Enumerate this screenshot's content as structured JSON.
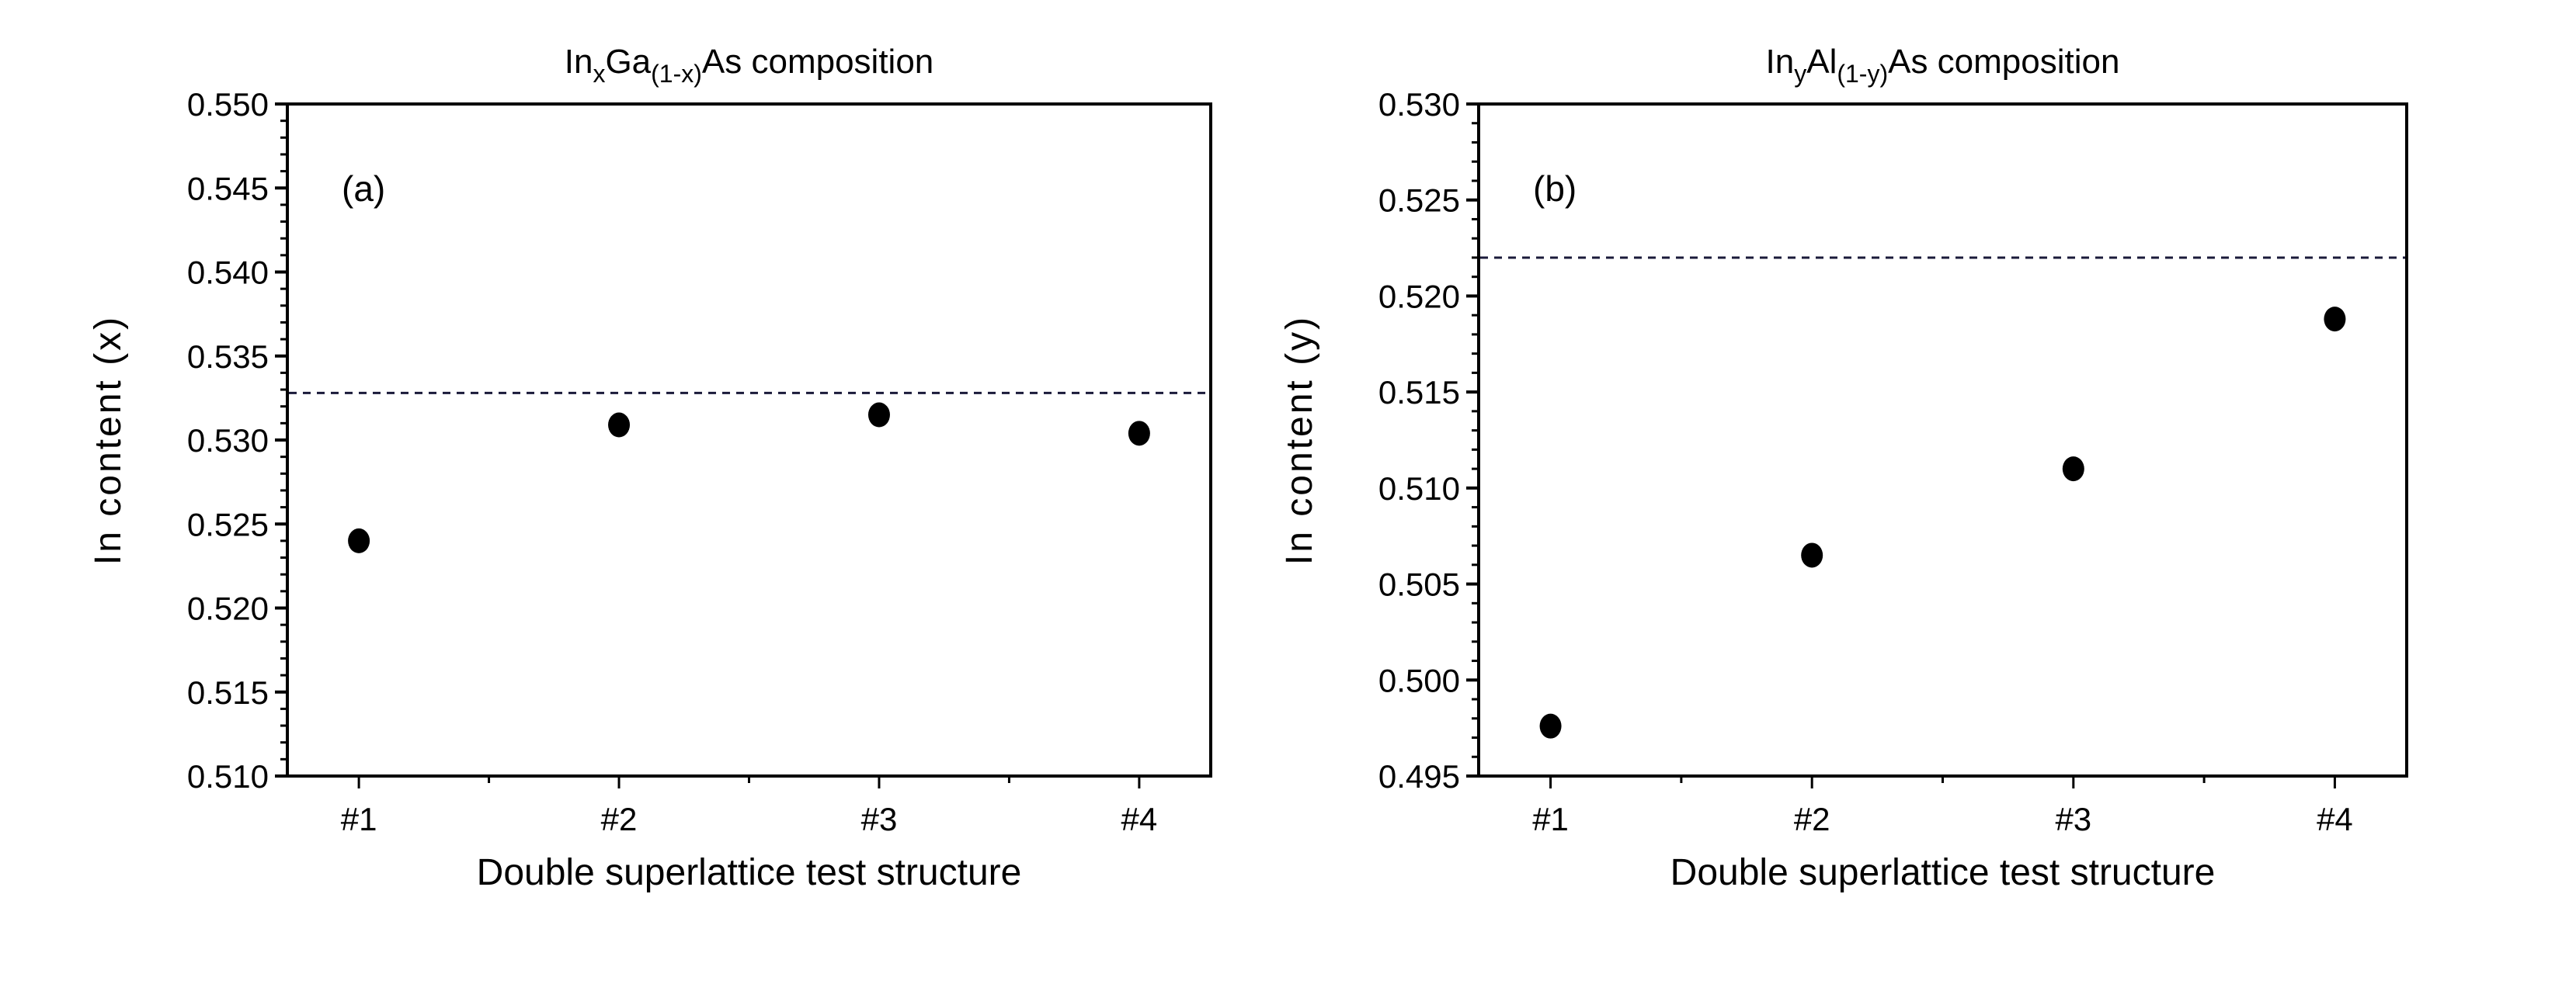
{
  "chart_data": [
    {
      "type": "scatter",
      "panel_tag": "(a)",
      "title": {
        "base1": "In",
        "sub1": "x",
        "base2": "Ga",
        "sub2": "(1-x)",
        "base3": "As composition"
      },
      "xlabel": "Double superlattice test structure",
      "ylabel": "In content (x)",
      "categories": [
        "#1",
        "#2",
        "#3",
        "#4"
      ],
      "values": [
        0.524,
        0.5309,
        0.5315,
        0.5304
      ],
      "ylim": [
        0.51,
        0.55
      ],
      "yticks": [
        "0.510",
        "0.515",
        "0.520",
        "0.525",
        "0.530",
        "0.535",
        "0.540",
        "0.545",
        "0.550"
      ],
      "reference_line": {
        "value": 0.5328,
        "style": "dashed"
      },
      "grid": false,
      "marker_color": "#000000"
    },
    {
      "type": "scatter",
      "panel_tag": "(b)",
      "title": {
        "base1": "In",
        "sub1": "y",
        "base2": "Al",
        "sub2": "(1-y)",
        "base3": "As composition"
      },
      "xlabel": "Double superlattice test structure",
      "ylabel": "In content (y)",
      "categories": [
        "#1",
        "#2",
        "#3",
        "#4"
      ],
      "values": [
        0.4976,
        0.5065,
        0.511,
        0.5188
      ],
      "ylim": [
        0.495,
        0.53
      ],
      "yticks": [
        "0.495",
        "0.500",
        "0.505",
        "0.510",
        "0.515",
        "0.520",
        "0.525",
        "0.530"
      ],
      "reference_line": {
        "value": 0.522,
        "style": "dashed"
      },
      "grid": false,
      "marker_color": "#000000"
    }
  ]
}
